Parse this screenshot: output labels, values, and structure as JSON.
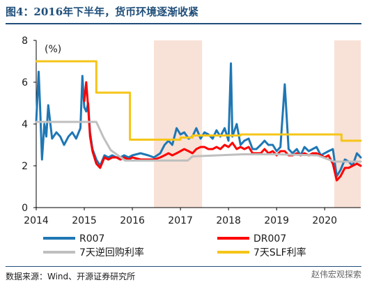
{
  "figure": {
    "title": "图4：2016年下半年，货币环境逐渐收紧",
    "source": "数据来源：Wind、开源证券研究所",
    "watermark": "赵伟宏观探索"
  },
  "chart_data": {
    "type": "line",
    "title": "",
    "xlabel": "",
    "ylabel": "(%)",
    "xlim": [
      2014.0,
      2020.75
    ],
    "ylim": [
      0,
      8
    ],
    "yticks": [
      0,
      2,
      4,
      6,
      8
    ],
    "xticks": [
      "2014",
      "2015",
      "2016",
      "2017",
      "2018",
      "2019",
      "2020"
    ],
    "grid": false,
    "legend": "bottom",
    "shaded_periods": [
      {
        "start": 2016.45,
        "end": 2017.45,
        "color": "#f8e1d6"
      },
      {
        "start": 2020.2,
        "end": 2020.75,
        "color": "#f8e1d6"
      }
    ],
    "series": [
      {
        "name": "R007",
        "color": "#1f77b4",
        "width": 3,
        "x": [
          2014.0,
          2014.05,
          2014.08,
          2014.12,
          2014.17,
          2014.21,
          2014.25,
          2014.33,
          2014.42,
          2014.5,
          2014.58,
          2014.67,
          2014.75,
          2014.83,
          2014.92,
          2014.96,
          2015.0,
          2015.04,
          2015.08,
          2015.12,
          2015.17,
          2015.25,
          2015.33,
          2015.42,
          2015.5,
          2015.58,
          2015.67,
          2015.75,
          2015.83,
          2015.92,
          2016.0,
          2016.17,
          2016.33,
          2016.45,
          2016.58,
          2016.67,
          2016.75,
          2016.83,
          2016.92,
          2017.0,
          2017.08,
          2017.17,
          2017.25,
          2017.33,
          2017.42,
          2017.5,
          2017.58,
          2017.67,
          2017.75,
          2017.83,
          2017.92,
          2018.0,
          2018.05,
          2018.08,
          2018.17,
          2018.25,
          2018.33,
          2018.42,
          2018.5,
          2018.58,
          2018.67,
          2018.75,
          2018.83,
          2018.92,
          2019.0,
          2019.08,
          2019.17,
          2019.25,
          2019.33,
          2019.42,
          2019.5,
          2019.58,
          2019.67,
          2019.75,
          2019.83,
          2019.92,
          2020.0,
          2020.08,
          2020.17,
          2020.25,
          2020.33,
          2020.42,
          2020.5,
          2020.58,
          2020.67,
          2020.75
        ],
        "y": [
          4.1,
          6.5,
          4.9,
          2.3,
          4.0,
          3.4,
          4.9,
          3.3,
          3.6,
          3.4,
          3.0,
          3.4,
          3.6,
          3.3,
          3.8,
          6.3,
          4.8,
          4.6,
          5.0,
          3.6,
          2.8,
          2.3,
          2.0,
          2.5,
          2.4,
          2.5,
          2.4,
          2.4,
          2.5,
          2.4,
          2.5,
          2.6,
          2.5,
          2.4,
          2.6,
          3.0,
          3.2,
          3.0,
          3.8,
          3.5,
          3.6,
          3.3,
          3.4,
          3.8,
          3.3,
          3.6,
          3.5,
          3.3,
          3.7,
          3.4,
          3.8,
          3.2,
          6.9,
          3.4,
          4.0,
          3.0,
          3.2,
          3.3,
          2.8,
          2.8,
          3.0,
          3.2,
          3.0,
          3.0,
          2.7,
          2.9,
          5.9,
          2.8,
          2.6,
          2.8,
          2.5,
          2.9,
          2.7,
          2.8,
          2.9,
          2.5,
          2.6,
          2.7,
          2.8,
          1.5,
          1.8,
          2.3,
          2.2,
          2.0,
          2.6,
          2.4
        ]
      },
      {
        "name": "DR007",
        "color": "#ff0000",
        "width": 3,
        "x": [
          2015.0,
          2015.04,
          2015.08,
          2015.12,
          2015.17,
          2015.25,
          2015.33,
          2015.42,
          2015.5,
          2015.58,
          2015.67,
          2015.75,
          2015.83,
          2015.92,
          2016.0,
          2016.17,
          2016.33,
          2016.45,
          2016.58,
          2016.67,
          2016.75,
          2016.83,
          2016.92,
          2017.0,
          2017.08,
          2017.17,
          2017.25,
          2017.33,
          2017.42,
          2017.5,
          2017.58,
          2017.67,
          2017.75,
          2017.83,
          2017.92,
          2018.0,
          2018.08,
          2018.17,
          2018.25,
          2018.33,
          2018.42,
          2018.5,
          2018.58,
          2018.67,
          2018.75,
          2018.83,
          2018.92,
          2019.0,
          2019.08,
          2019.17,
          2019.25,
          2019.33,
          2019.42,
          2019.5,
          2019.58,
          2019.67,
          2019.75,
          2019.83,
          2019.92,
          2020.0,
          2020.08,
          2020.17,
          2020.25,
          2020.33,
          2020.42,
          2020.5,
          2020.58,
          2020.67,
          2020.75
        ],
        "y": [
          5.1,
          6.0,
          4.8,
          3.4,
          2.7,
          2.1,
          1.9,
          2.4,
          2.3,
          2.4,
          2.4,
          2.3,
          2.4,
          2.3,
          2.4,
          2.3,
          2.3,
          2.3,
          2.4,
          2.5,
          2.6,
          2.5,
          2.6,
          2.7,
          2.8,
          2.7,
          2.6,
          2.8,
          2.9,
          2.9,
          2.8,
          2.8,
          2.9,
          2.8,
          3.0,
          2.9,
          3.1,
          2.8,
          2.9,
          2.8,
          2.9,
          2.6,
          2.6,
          2.6,
          2.8,
          2.6,
          2.7,
          2.5,
          2.7,
          2.7,
          2.5,
          2.5,
          2.6,
          2.5,
          2.6,
          2.5,
          2.6,
          2.6,
          2.5,
          2.4,
          2.5,
          2.1,
          1.3,
          1.5,
          1.9,
          1.9,
          2.0,
          2.1,
          2.0
        ]
      },
      {
        "name": "7天逆回购利率",
        "color": "#bfbfbf",
        "width": 3,
        "x": [
          2014.0,
          2015.25,
          2015.4,
          2015.55,
          2015.7,
          2015.85,
          2017.15,
          2017.25,
          2018.3,
          2019.0,
          2019.85,
          2020.2,
          2020.75
        ],
        "y": [
          4.1,
          4.1,
          3.35,
          2.75,
          2.5,
          2.25,
          2.25,
          2.45,
          2.55,
          2.55,
          2.5,
          2.2,
          2.2
        ]
      },
      {
        "name": "7天SLF利率",
        "color": "#f5c518",
        "width": 3,
        "x": [
          2014.0,
          2015.25,
          2015.25,
          2015.95,
          2015.95,
          2017.0,
          2017.0,
          2017.25,
          2017.25,
          2018.25,
          2018.25,
          2020.35,
          2020.35,
          2020.75
        ],
        "y": [
          7.0,
          7.0,
          5.5,
          5.5,
          3.25,
          3.25,
          3.35,
          3.35,
          3.45,
          3.45,
          3.5,
          3.5,
          3.2,
          3.2
        ]
      }
    ]
  }
}
